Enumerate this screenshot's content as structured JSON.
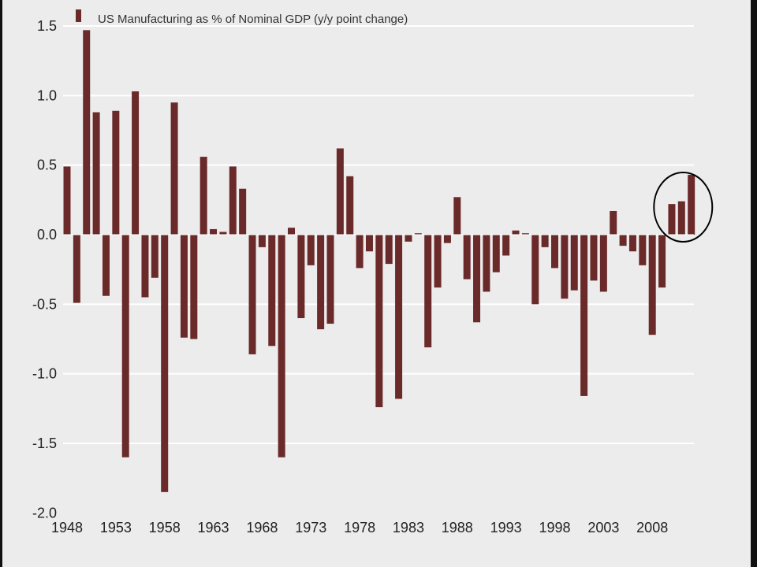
{
  "chart_data": {
    "type": "bar",
    "title": "",
    "xlabel": "",
    "ylabel": "",
    "legend": {
      "position": "top-left",
      "entries": [
        "US Manufacturing as % of Nominal GDP (y/y point change)"
      ]
    },
    "grid": true,
    "ylim": [
      -2.0,
      1.5
    ],
    "yticks": [
      1.5,
      1.0,
      0.5,
      0.0,
      -0.5,
      -1.0,
      -1.5,
      -2.0
    ],
    "ytick_labels": [
      "1.5",
      "1.0",
      "0.5",
      "0.0",
      "-0.5",
      "-1.0",
      "-1.5",
      "-2.0"
    ],
    "xtick_labels": [
      "1948",
      "1953",
      "1958",
      "1963",
      "1968",
      "1973",
      "1978",
      "1983",
      "1988",
      "1993",
      "1998",
      "2003",
      "2008"
    ],
    "bar_color": "#6b2a2a",
    "highlight_color": "#000000",
    "highlighted_years": [
      2010,
      2011,
      2012
    ],
    "series": [
      {
        "name": "US Manufacturing as % of Nominal GDP (y/y point change)",
        "x": [
          1948,
          1949,
          1950,
          1951,
          1952,
          1953,
          1954,
          1955,
          1956,
          1957,
          1958,
          1959,
          1960,
          1961,
          1962,
          1963,
          1964,
          1965,
          1966,
          1967,
          1968,
          1969,
          1970,
          1971,
          1972,
          1973,
          1974,
          1975,
          1976,
          1977,
          1978,
          1979,
          1980,
          1981,
          1982,
          1983,
          1984,
          1985,
          1986,
          1987,
          1988,
          1989,
          1990,
          1991,
          1992,
          1993,
          1994,
          1995,
          1996,
          1997,
          1998,
          1999,
          2000,
          2001,
          2002,
          2003,
          2004,
          2005,
          2006,
          2007,
          2008,
          2009,
          2010,
          2011,
          2012
        ],
        "values": [
          0.49,
          -0.49,
          1.47,
          0.88,
          -0.44,
          0.89,
          -1.6,
          1.03,
          -0.45,
          -0.31,
          -1.85,
          0.95,
          -0.74,
          -0.75,
          0.56,
          0.04,
          0.02,
          0.49,
          0.33,
          -0.86,
          -0.09,
          -0.8,
          -1.6,
          0.05,
          -0.6,
          -0.22,
          -0.68,
          -0.64,
          0.62,
          0.42,
          -0.24,
          -0.12,
          -1.24,
          -0.21,
          -1.18,
          -0.05,
          0.01,
          -0.81,
          -0.38,
          -0.06,
          0.27,
          -0.32,
          -0.63,
          -0.41,
          -0.27,
          -0.15,
          0.03,
          0.01,
          -0.5,
          -0.09,
          -0.24,
          -0.46,
          -0.4,
          -1.16,
          -0.33,
          -0.41,
          0.17,
          -0.08,
          -0.12,
          -0.22,
          -0.72,
          -0.38,
          0.22,
          0.24,
          0.43
        ]
      }
    ]
  }
}
